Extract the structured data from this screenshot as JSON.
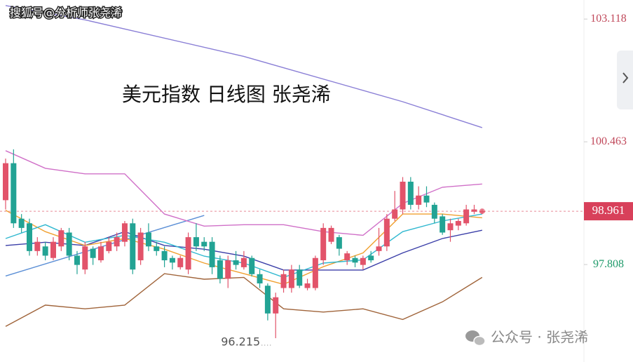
{
  "watermark": "搜狐号@分析师张尧浠",
  "footer": "公众号 · 张尧浠",
  "chart_data": {
    "type": "candlestick",
    "title": "美元指数 日线图 张尧浠",
    "ylim": [
      95.7,
      103.53
    ],
    "yticks": [
      103.118,
      100.463,
      97.808
    ],
    "last_price": 98.961,
    "up_color": "#e2536a",
    "down_color": "#22a394",
    "open": [
      99.2,
      100.0,
      98.8,
      98.7,
      98.1,
      98.2,
      97.95,
      98.2,
      98.5,
      98.0,
      97.7,
      98.15,
      97.9,
      98.1,
      98.2,
      98.3,
      98.7,
      97.9,
      98.5,
      98.2,
      98.1,
      97.95,
      97.75,
      97.7,
      98.4,
      98.3,
      98.3,
      97.9,
      97.5,
      97.9,
      97.75,
      97.95,
      97.6,
      97.35,
      96.75,
      97.3,
      97.3,
      97.7,
      97.3,
      97.3,
      97.9,
      98.3,
      98.4,
      97.9,
      97.95,
      97.8,
      98.0,
      98.1,
      98.2,
      98.8,
      99.0,
      99.6,
      99.1,
      99.3,
      99.1,
      98.85,
      98.55,
      98.65,
      98.7,
      98.95,
      98.95
    ],
    "high": [
      100.1,
      100.3,
      98.9,
      98.8,
      98.4,
      98.3,
      98.4,
      98.6,
      98.6,
      98.1,
      98.3,
      98.2,
      98.3,
      98.4,
      98.5,
      98.75,
      98.8,
      98.6,
      98.7,
      98.3,
      98.2,
      98.0,
      98.0,
      98.5,
      98.7,
      98.4,
      98.4,
      98.0,
      98.0,
      98.1,
      98.1,
      98.0,
      97.7,
      97.4,
      97.2,
      97.7,
      97.8,
      97.8,
      97.5,
      98.0,
      98.7,
      98.65,
      98.45,
      98.1,
      98.0,
      98.0,
      98.1,
      98.6,
      98.9,
      99.4,
      99.7,
      99.7,
      99.5,
      99.5,
      99.15,
      98.9,
      98.8,
      98.8,
      99.1,
      99.1,
      99.0
    ],
    "low": [
      99.0,
      98.6,
      98.5,
      98.0,
      98.0,
      97.9,
      97.9,
      98.1,
      97.9,
      97.6,
      97.6,
      97.8,
      97.85,
      98.05,
      98.1,
      98.2,
      97.6,
      97.8,
      98.1,
      98.0,
      97.75,
      97.7,
      97.7,
      97.6,
      98.1,
      98.1,
      97.6,
      97.4,
      97.3,
      97.7,
      97.7,
      97.55,
      97.3,
      96.6,
      96.215,
      97.2,
      97.2,
      97.3,
      97.25,
      97.25,
      97.8,
      98.25,
      98.0,
      97.8,
      97.75,
      97.7,
      97.85,
      98.0,
      98.1,
      98.75,
      98.9,
      99.0,
      99.0,
      99.05,
      98.7,
      98.45,
      98.3,
      98.55,
      98.65,
      98.9,
      98.9
    ],
    "close": [
      100.0,
      98.7,
      98.6,
      98.1,
      98.3,
      98.0,
      98.3,
      98.55,
      98.0,
      97.8,
      98.2,
      97.95,
      98.2,
      98.3,
      98.4,
      98.7,
      97.7,
      98.5,
      98.2,
      98.1,
      97.9,
      97.85,
      97.95,
      98.4,
      98.2,
      98.2,
      97.75,
      97.5,
      97.9,
      97.8,
      97.95,
      97.6,
      97.4,
      96.75,
      97.1,
      97.6,
      97.7,
      97.35,
      97.4,
      97.95,
      98.6,
      98.6,
      98.15,
      98.05,
      97.85,
      97.95,
      97.9,
      98.2,
      98.8,
      99.0,
      99.6,
      99.1,
      99.3,
      99.15,
      98.8,
      98.5,
      98.7,
      98.75,
      99.0,
      99.0,
      98.961
    ],
    "overlays": [
      {
        "color": "#8a7fd6",
        "x": [
          0,
          10,
          30,
          50,
          60
        ],
        "values": [
          103.41,
          103.1,
          102.31,
          101.33,
          100.77
        ]
      },
      {
        "color": "#5b8fd6",
        "x": [
          0,
          25
        ],
        "values": [
          97.56,
          98.87
        ]
      },
      {
        "color": "#d070c8",
        "x": [
          0,
          5,
          10,
          15,
          20,
          25,
          30,
          35,
          40,
          45,
          50,
          55,
          60
        ],
        "values": [
          100.27,
          99.89,
          99.77,
          99.77,
          98.9,
          98.64,
          98.67,
          98.67,
          98.52,
          98.44,
          99.13,
          99.48,
          99.55
        ]
      },
      {
        "color": "#a0643a",
        "x": [
          0,
          5,
          10,
          15,
          20,
          25,
          30,
          35,
          40,
          45,
          50,
          55,
          60
        ],
        "values": [
          96.47,
          96.93,
          96.85,
          96.93,
          97.61,
          97.49,
          97.53,
          96.85,
          96.78,
          96.85,
          96.62,
          97.0,
          97.53
        ]
      },
      {
        "color": "#3a3ea8",
        "x": [
          0,
          5,
          10,
          15,
          20,
          25,
          30,
          35,
          40,
          45,
          50,
          55,
          60
        ],
        "values": [
          98.22,
          98.29,
          98.22,
          98.52,
          98.22,
          98.14,
          97.99,
          97.69,
          97.69,
          97.69,
          98.06,
          98.37,
          98.55
        ]
      },
      {
        "color": "#f0a030",
        "x": [
          0,
          5,
          10,
          15,
          20,
          25,
          30,
          35,
          40,
          45,
          50,
          55,
          60
        ],
        "values": [
          98.98,
          98.52,
          98.22,
          98.37,
          98.14,
          97.84,
          97.61,
          97.38,
          97.76,
          98.06,
          98.9,
          98.9,
          98.82
        ]
      },
      {
        "color": "#30b8d0",
        "x": [
          0,
          5,
          10,
          15,
          20,
          25,
          30,
          35,
          40,
          45,
          50,
          55,
          60
        ],
        "values": [
          98.37,
          98.67,
          98.29,
          98.44,
          98.29,
          97.99,
          97.84,
          97.53,
          97.84,
          97.91,
          98.52,
          98.75,
          98.9
        ]
      }
    ]
  }
}
